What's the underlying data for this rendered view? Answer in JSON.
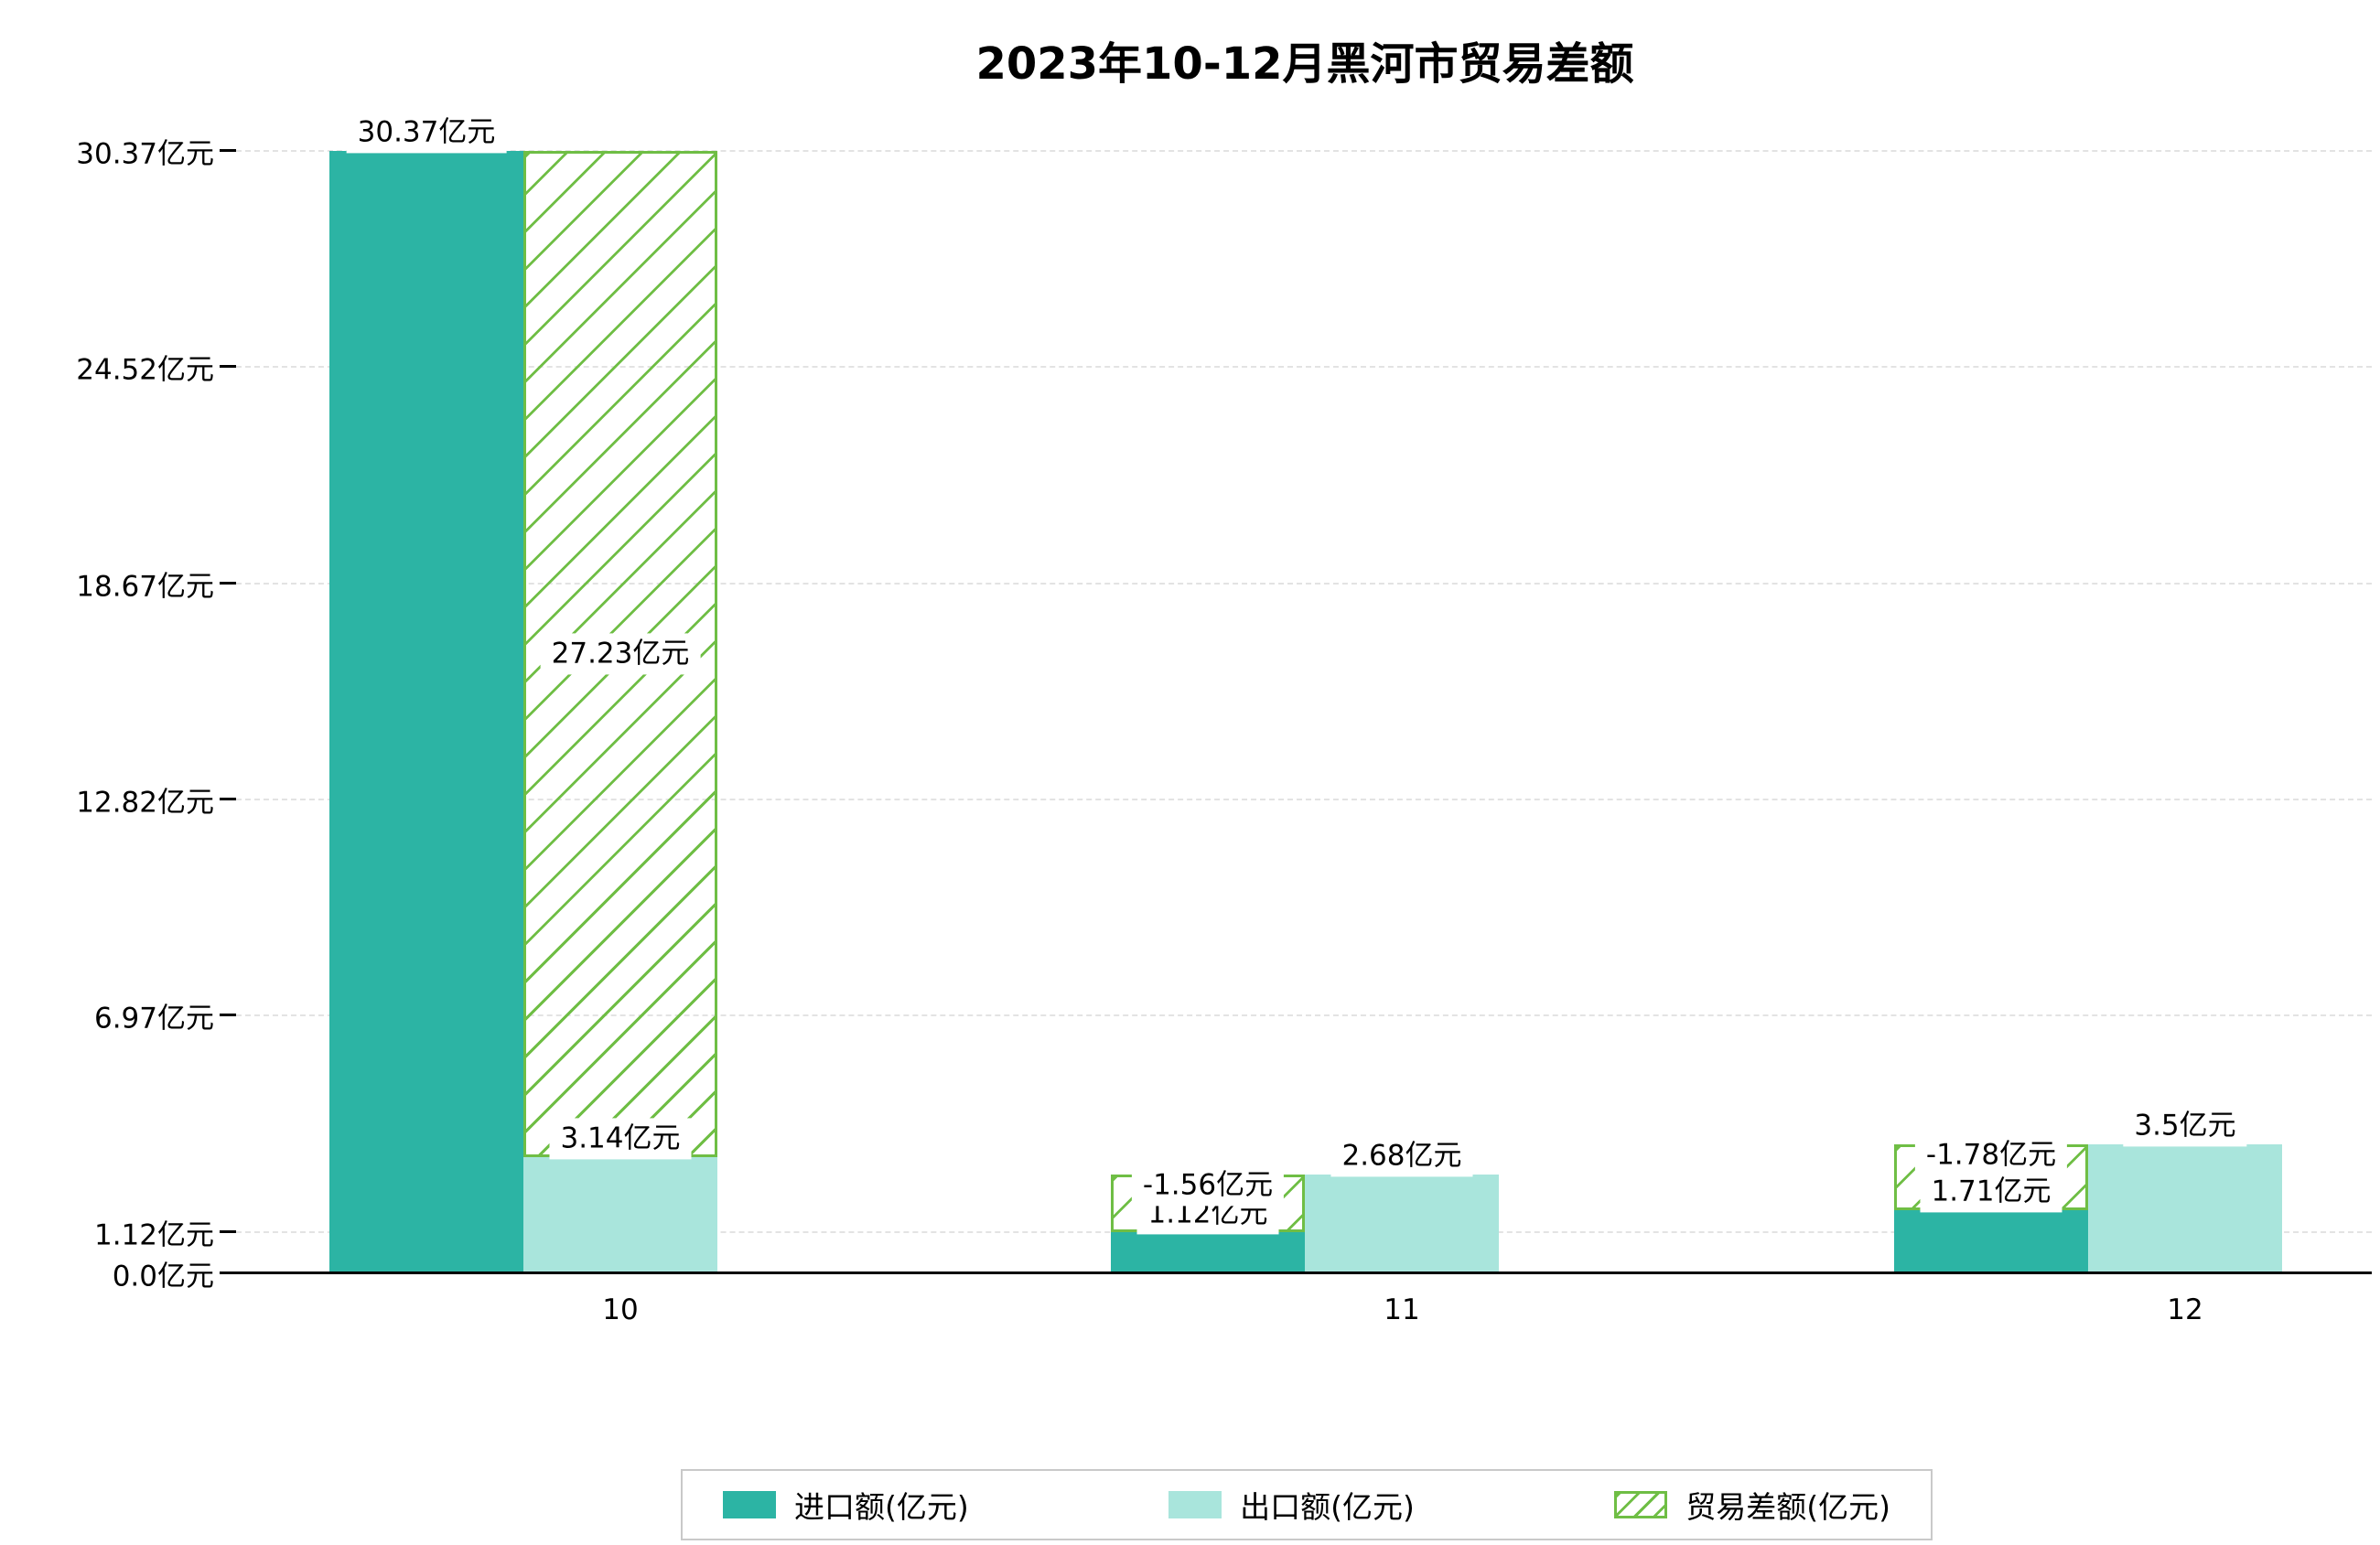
{
  "title": "2023年10-12月黑河市贸易差额",
  "colors": {
    "import": "#2cb4a4",
    "export": "#a9e5dc",
    "balance": "#6fbe45",
    "grid": "#e3e3e3",
    "axis": "#000000",
    "label_bg": "#ffffff",
    "legend_border": "#c9c9c9"
  },
  "y_axis": {
    "unit": "亿元",
    "ticks": [
      {
        "value": 0.0,
        "label": "0.0亿元"
      },
      {
        "value": 1.12,
        "label": "1.12亿元"
      },
      {
        "value": 6.97,
        "label": "6.97亿元"
      },
      {
        "value": 12.82,
        "label": "12.82亿元"
      },
      {
        "value": 18.67,
        "label": "18.67亿元"
      },
      {
        "value": 24.52,
        "label": "24.52亿元"
      },
      {
        "value": 30.37,
        "label": "30.37亿元"
      }
    ]
  },
  "x_axis": {
    "tick_labels": [
      "10",
      "11",
      "12"
    ]
  },
  "legend": {
    "items": [
      {
        "label": "进口额(亿元)",
        "swatch": "import"
      },
      {
        "label": "出口额(亿元)",
        "swatch": "export"
      },
      {
        "label": "贸易差额(亿元)",
        "swatch": "balance"
      }
    ]
  },
  "chart_data": {
    "type": "bar",
    "title": "2023年10-12月黑河市贸易差额",
    "categories": [
      "10",
      "11",
      "12"
    ],
    "series": [
      {
        "name": "进口额(亿元)",
        "values": [
          30.37,
          1.12,
          1.71
        ],
        "labels": [
          "30.37亿元",
          "1.12亿元",
          "1.71亿元"
        ]
      },
      {
        "name": "出口额(亿元)",
        "values": [
          3.14,
          2.68,
          3.5
        ],
        "labels": [
          "3.14亿元",
          "2.68亿元",
          "3.5亿元"
        ]
      },
      {
        "name": "贸易差额(亿元)",
        "values": [
          27.23,
          -1.56,
          -1.78
        ],
        "labels": [
          "27.23亿元",
          "-1.56亿元",
          "-1.78亿元"
        ]
      }
    ],
    "ylim": [
      0,
      30.37
    ],
    "y_tick_values": [
      0.0,
      1.12,
      6.97,
      12.82,
      18.67,
      24.52,
      30.37
    ],
    "grid": "horizontal-dashed",
    "legend_position": "bottom",
    "bar_style": {
      "import": "solid-fill",
      "export": "solid-fill",
      "balance": "white-fill-green-diagonal-hatch-outline"
    }
  }
}
